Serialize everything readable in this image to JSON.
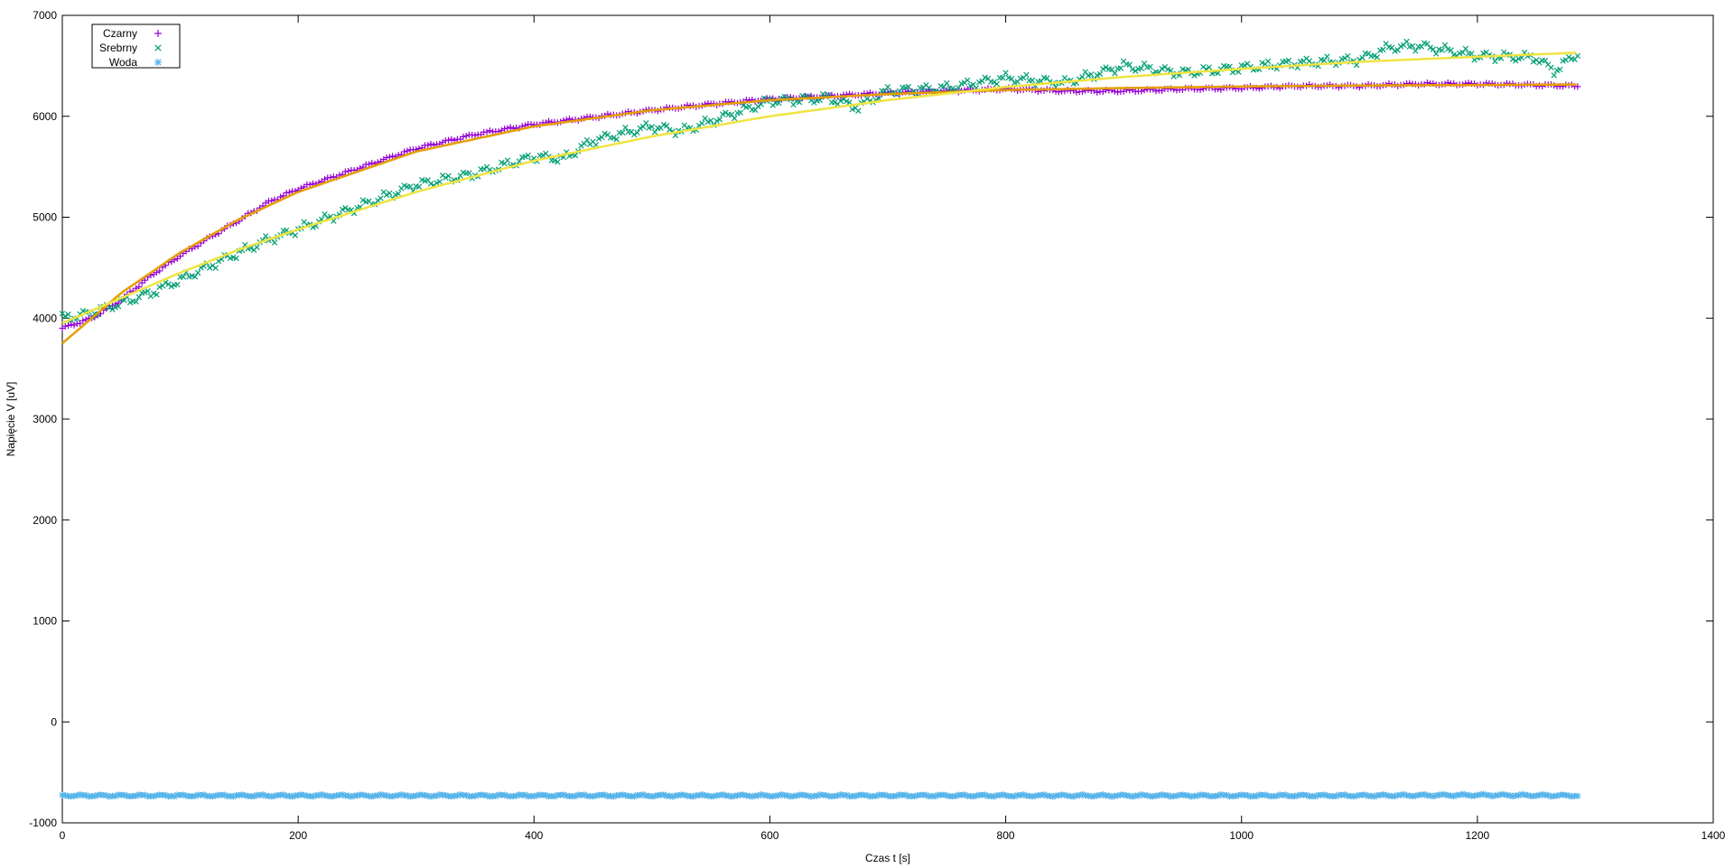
{
  "chart_data": {
    "type": "scatter",
    "title": "",
    "xlabel": "Czas t [s]",
    "ylabel": "Napięcie V [uV]",
    "xlim": [
      0,
      1400
    ],
    "ylim": [
      -1000,
      7000
    ],
    "xticks": [
      0,
      200,
      400,
      600,
      800,
      1000,
      1200,
      1400
    ],
    "yticks": [
      -1000,
      0,
      1000,
      2000,
      3000,
      4000,
      5000,
      6000,
      7000
    ],
    "grid": false,
    "legend_position": "top-left",
    "series": [
      {
        "name": "Czarny",
        "marker": "plus",
        "color": "#9400d3",
        "x": [
          0,
          25,
          50,
          75,
          100,
          125,
          150,
          175,
          200,
          250,
          300,
          350,
          400,
          450,
          500,
          550,
          600,
          650,
          700,
          750,
          800,
          850,
          900,
          950,
          1000,
          1050,
          1100,
          1150,
          1200,
          1250,
          1285
        ],
        "y": [
          3900,
          4000,
          4180,
          4420,
          4620,
          4800,
          4970,
          5150,
          5280,
          5480,
          5680,
          5820,
          5920,
          5990,
          6060,
          6120,
          6170,
          6200,
          6230,
          6250,
          6270,
          6250,
          6250,
          6270,
          6280,
          6300,
          6300,
          6320,
          6320,
          6310,
          6300
        ]
      },
      {
        "name": "Srebrny",
        "marker": "cross",
        "color": "#009e73",
        "x": [
          0,
          25,
          50,
          75,
          100,
          125,
          150,
          175,
          200,
          250,
          300,
          350,
          400,
          425,
          450,
          500,
          525,
          550,
          600,
          650,
          675,
          700,
          750,
          800,
          850,
          900,
          950,
          1000,
          1050,
          1100,
          1125,
          1150,
          1200,
          1250,
          1265,
          1285
        ],
        "y": [
          4000,
          4050,
          4150,
          4250,
          4380,
          4520,
          4650,
          4780,
          4880,
          5100,
          5320,
          5430,
          5600,
          5580,
          5760,
          5900,
          5850,
          5950,
          6150,
          6180,
          6090,
          6250,
          6280,
          6380,
          6330,
          6500,
          6430,
          6480,
          6530,
          6560,
          6680,
          6700,
          6600,
          6580,
          6450,
          6620
        ]
      },
      {
        "name": "Woda",
        "marker": "star",
        "color": "#56b4e9",
        "x": [
          0,
          100,
          200,
          300,
          400,
          500,
          600,
          700,
          800,
          900,
          1000,
          1100,
          1200,
          1285
        ],
        "y": [
          -730,
          -730,
          -730,
          -730,
          -730,
          -730,
          -730,
          -730,
          -730,
          -730,
          -730,
          -730,
          -725,
          -730
        ]
      }
    ],
    "fits": [
      {
        "color": "#e69f00",
        "x": [
          0,
          50,
          100,
          150,
          200,
          300,
          400,
          500,
          600,
          700,
          800,
          900,
          1000,
          1100,
          1200,
          1285
        ],
        "y": [
          3750,
          4250,
          4650,
          4980,
          5250,
          5650,
          5900,
          6060,
          6160,
          6220,
          6260,
          6280,
          6295,
          6305,
          6310,
          6315
        ]
      },
      {
        "color": "#f0e442",
        "x": [
          0,
          50,
          100,
          150,
          200,
          300,
          400,
          500,
          600,
          700,
          800,
          900,
          1000,
          1100,
          1200,
          1285
        ],
        "y": [
          3950,
          4200,
          4450,
          4680,
          4880,
          5250,
          5560,
          5800,
          6000,
          6160,
          6290,
          6390,
          6470,
          6540,
          6590,
          6630
        ]
      }
    ]
  }
}
